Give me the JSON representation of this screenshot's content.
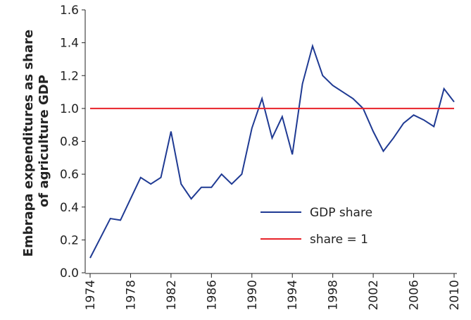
{
  "chart_data": {
    "type": "line",
    "ylabel": [
      "Embrapa expenditures as share",
      "of agriculture GDP"
    ],
    "xlim": [
      1974,
      2010
    ],
    "xticks": [
      1974,
      1978,
      1982,
      1986,
      1990,
      1994,
      1998,
      2002,
      2006,
      2010
    ],
    "ylim": [
      0,
      1.6
    ],
    "yticks": [
      {
        "value": 0,
        "label": "0.0"
      },
      0.2,
      0.4,
      0.6,
      0.8,
      {
        "value": 1,
        "label": "1.0"
      },
      1.2,
      1.4,
      1.6
    ],
    "series": [
      {
        "name": "GDP share",
        "color": "#1f3a93",
        "x": [
          1974,
          1975,
          1976,
          1977,
          1978,
          1979,
          1980,
          1981,
          1982,
          1983,
          1984,
          1985,
          1986,
          1987,
          1988,
          1989,
          1990,
          1991,
          1992,
          1993,
          1994,
          1995,
          1996,
          1997,
          1998,
          1999,
          2000,
          2001,
          2002,
          2003,
          2004,
          2005,
          2006,
          2007,
          2008,
          2009,
          2010
        ],
        "values": [
          0.09,
          0.21,
          0.33,
          0.32,
          0.45,
          0.58,
          0.54,
          0.58,
          0.86,
          0.54,
          0.45,
          0.52,
          0.52,
          0.6,
          0.54,
          0.6,
          0.88,
          1.06,
          0.82,
          0.95,
          0.72,
          1.15,
          1.38,
          1.2,
          1.14,
          1.1,
          1.06,
          1.0,
          0.86,
          0.74,
          0.82,
          0.91,
          0.96,
          0.93,
          0.89,
          1.12,
          1.04
        ]
      },
      {
        "name": "share = 1",
        "color": "#e8232a",
        "x": [
          1974,
          2010
        ],
        "values": [
          1,
          1
        ]
      }
    ],
    "legend": "lower right"
  }
}
